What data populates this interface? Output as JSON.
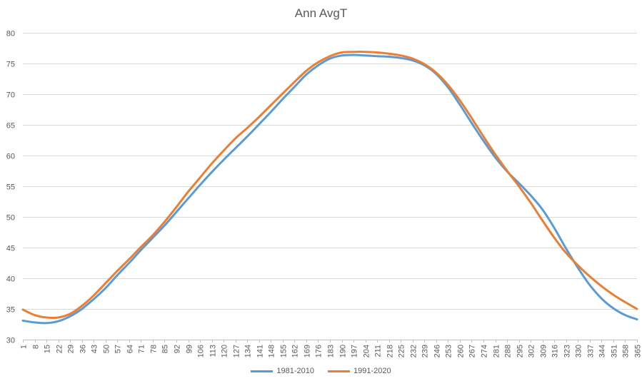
{
  "chart_data": {
    "type": "line",
    "title": "Ann AvgT",
    "xlabel": "",
    "ylabel": "",
    "ylim": [
      30,
      80
    ],
    "yticks": [
      30,
      35,
      40,
      45,
      50,
      55,
      60,
      65,
      70,
      75,
      80
    ],
    "xlim": [
      1,
      365
    ],
    "xticks": [
      1,
      8,
      15,
      22,
      29,
      36,
      43,
      50,
      57,
      64,
      71,
      78,
      85,
      92,
      99,
      106,
      113,
      120,
      127,
      134,
      141,
      148,
      155,
      162,
      169,
      176,
      183,
      190,
      197,
      204,
      211,
      218,
      225,
      232,
      239,
      246,
      253,
      260,
      267,
      274,
      281,
      288,
      295,
      302,
      309,
      316,
      323,
      330,
      337,
      344,
      351,
      358,
      365
    ],
    "grid": true,
    "legend_position": "bottom",
    "series": [
      {
        "name": "1981-2010",
        "color": "#5B9BD5",
        "x": [
          1,
          8,
          15,
          22,
          29,
          36,
          43,
          50,
          57,
          64,
          71,
          78,
          85,
          92,
          99,
          106,
          113,
          120,
          127,
          134,
          141,
          148,
          155,
          162,
          169,
          176,
          183,
          190,
          197,
          204,
          211,
          218,
          225,
          232,
          239,
          246,
          253,
          260,
          267,
          274,
          281,
          288,
          295,
          302,
          309,
          316,
          323,
          330,
          337,
          344,
          351,
          358,
          365
        ],
        "values": [
          33.1,
          32.8,
          32.7,
          33.0,
          33.8,
          35.0,
          36.6,
          38.4,
          40.5,
          42.5,
          44.6,
          46.6,
          48.6,
          50.8,
          53.0,
          55.2,
          57.3,
          59.3,
          61.2,
          63.1,
          65.1,
          67.1,
          69.2,
          71.2,
          73.2,
          74.7,
          75.8,
          76.3,
          76.4,
          76.3,
          76.2,
          76.1,
          75.9,
          75.5,
          74.7,
          73.3,
          71.1,
          68.3,
          65.3,
          62.4,
          59.7,
          57.4,
          55.5,
          53.5,
          51.2,
          48.2,
          44.8,
          41.7,
          38.9,
          36.7,
          35.1,
          34.0,
          33.3
        ]
      },
      {
        "name": "1991-2020",
        "color": "#ED7D31",
        "x": [
          1,
          8,
          15,
          22,
          29,
          36,
          43,
          50,
          57,
          64,
          71,
          78,
          85,
          92,
          99,
          106,
          113,
          120,
          127,
          134,
          141,
          148,
          155,
          162,
          169,
          176,
          183,
          190,
          197,
          204,
          211,
          218,
          225,
          232,
          239,
          246,
          253,
          260,
          267,
          274,
          281,
          288,
          295,
          302,
          309,
          316,
          323,
          330,
          337,
          344,
          351,
          358,
          365
        ],
        "values": [
          34.9,
          34.0,
          33.6,
          33.6,
          34.2,
          35.5,
          37.2,
          39.2,
          41.2,
          43.1,
          45.1,
          47.0,
          49.2,
          51.6,
          54.1,
          56.4,
          58.7,
          60.8,
          62.8,
          64.5,
          66.3,
          68.2,
          70.1,
          72.0,
          73.8,
          75.2,
          76.2,
          76.8,
          76.9,
          76.9,
          76.8,
          76.6,
          76.3,
          75.8,
          74.9,
          73.5,
          71.5,
          69.0,
          66.1,
          63.1,
          60.2,
          57.5,
          55.0,
          52.3,
          49.4,
          46.6,
          44.1,
          42.1,
          40.3,
          38.7,
          37.3,
          36.1,
          35.0
        ]
      }
    ]
  }
}
